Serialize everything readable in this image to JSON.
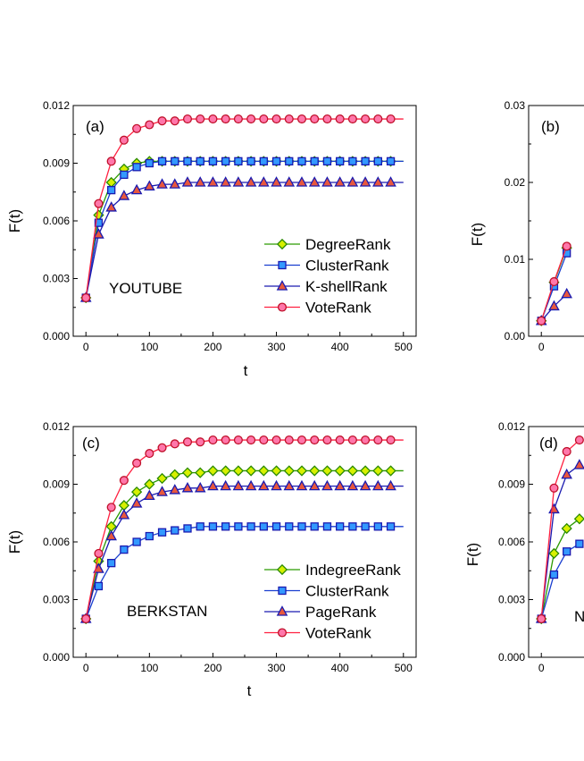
{
  "chart_data": [
    {
      "id": "a",
      "type": "line",
      "panel_label": "(a)",
      "dataset_label": "YOUTUBE",
      "xlabel": "t",
      "ylabel": "F(t)",
      "xlim": [
        -20,
        520
      ],
      "ylim": [
        0,
        0.012
      ],
      "xticks": [
        "0",
        "100",
        "200",
        "300",
        "400",
        "500"
      ],
      "yticks": [
        "0.000",
        "0.003",
        "0.006",
        "0.009",
        "0.012"
      ],
      "legend_position": "right",
      "x": [
        0,
        20,
        40,
        60,
        80,
        100,
        120,
        140,
        160,
        180,
        200,
        220,
        240,
        260,
        280,
        300,
        320,
        340,
        360,
        380,
        400,
        420,
        440,
        460,
        480
      ],
      "series": [
        {
          "name": "DegreeRank",
          "color": "#7acc00",
          "marker": "diamond",
          "values": [
            0.002,
            0.0063,
            0.008,
            0.0087,
            0.009,
            0.0091,
            0.0091,
            0.0091,
            0.0091,
            0.0091,
            0.0091,
            0.0091,
            0.0091,
            0.0091,
            0.0091,
            0.0091,
            0.0091,
            0.0091,
            0.0091,
            0.0091,
            0.0091,
            0.0091,
            0.0091,
            0.0091,
            0.0091
          ]
        },
        {
          "name": "ClusterRank",
          "color": "#3399ff",
          "marker": "square",
          "values": [
            0.002,
            0.0059,
            0.0076,
            0.0084,
            0.0088,
            0.009,
            0.0091,
            0.0091,
            0.0091,
            0.0091,
            0.0091,
            0.0091,
            0.0091,
            0.0091,
            0.0091,
            0.0091,
            0.0091,
            0.0091,
            0.0091,
            0.0091,
            0.0091,
            0.0091,
            0.0091,
            0.0091,
            0.0091
          ]
        },
        {
          "name": "K-shellRank",
          "color": "#e8583d",
          "marker": "triangle",
          "values": [
            0.002,
            0.0053,
            0.0067,
            0.0073,
            0.0076,
            0.0078,
            0.0079,
            0.0079,
            0.008,
            0.008,
            0.008,
            0.008,
            0.008,
            0.008,
            0.008,
            0.008,
            0.008,
            0.008,
            0.008,
            0.008,
            0.008,
            0.008,
            0.008,
            0.008,
            0.008
          ]
        },
        {
          "name": "VoteRank",
          "color": "#ff77aa",
          "marker": "circle",
          "values": [
            0.002,
            0.0069,
            0.0091,
            0.0102,
            0.0108,
            0.011,
            0.0112,
            0.0112,
            0.0113,
            0.0113,
            0.0113,
            0.0113,
            0.0113,
            0.0113,
            0.0113,
            0.0113,
            0.0113,
            0.0113,
            0.0113,
            0.0113,
            0.0113,
            0.0113,
            0.0113,
            0.0113,
            0.0113
          ]
        }
      ]
    },
    {
      "id": "b",
      "type": "line",
      "panel_label": "(b)",
      "ylabel": "F(t)",
      "xlim": [
        -20,
        520
      ],
      "ylim": [
        0,
        0.03
      ],
      "xticks": [
        "0"
      ],
      "yticks": [
        "0.00",
        "0.01",
        "0.02",
        "0.03"
      ],
      "x": [
        0,
        20,
        40
      ],
      "series": [
        {
          "color": "#7acc00",
          "marker": "diamond",
          "values": [
            0.002,
            0.007,
            0.0115
          ]
        },
        {
          "color": "#3399ff",
          "marker": "square",
          "values": [
            0.002,
            0.0065,
            0.0108
          ]
        },
        {
          "color": "#e8583d",
          "marker": "triangle",
          "values": [
            0.002,
            0.0039,
            0.0055
          ]
        },
        {
          "color": "#ff77aa",
          "marker": "circle",
          "values": [
            0.002,
            0.0071,
            0.0117
          ]
        }
      ]
    },
    {
      "id": "c",
      "type": "line",
      "panel_label": "(c)",
      "dataset_label": "BERKSTAN",
      "xlabel": "t",
      "ylabel": "F(t)",
      "xlim": [
        -20,
        520
      ],
      "ylim": [
        0,
        0.012
      ],
      "xticks": [
        "0",
        "100",
        "200",
        "300",
        "400",
        "500"
      ],
      "yticks": [
        "0.000",
        "0.003",
        "0.006",
        "0.009",
        "0.012"
      ],
      "legend_position": "right",
      "x": [
        0,
        20,
        40,
        60,
        80,
        100,
        120,
        140,
        160,
        180,
        200,
        220,
        240,
        260,
        280,
        300,
        320,
        340,
        360,
        380,
        400,
        420,
        440,
        460,
        480
      ],
      "series": [
        {
          "name": "IndegreeRank",
          "color": "#7acc00",
          "marker": "diamond",
          "values": [
            0.002,
            0.005,
            0.0068,
            0.0079,
            0.0086,
            0.009,
            0.0093,
            0.0095,
            0.0096,
            0.0096,
            0.0097,
            0.0097,
            0.0097,
            0.0097,
            0.0097,
            0.0097,
            0.0097,
            0.0097,
            0.0097,
            0.0097,
            0.0097,
            0.0097,
            0.0097,
            0.0097,
            0.0097
          ]
        },
        {
          "name": "ClusterRank",
          "color": "#3399ff",
          "marker": "square",
          "values": [
            0.002,
            0.0037,
            0.0049,
            0.0056,
            0.006,
            0.0063,
            0.0065,
            0.0066,
            0.0067,
            0.0068,
            0.0068,
            0.0068,
            0.0068,
            0.0068,
            0.0068,
            0.0068,
            0.0068,
            0.0068,
            0.0068,
            0.0068,
            0.0068,
            0.0068,
            0.0068,
            0.0068,
            0.0068
          ]
        },
        {
          "name": "PageRank",
          "color": "#e8583d",
          "marker": "triangle",
          "values": [
            0.002,
            0.0046,
            0.0063,
            0.0074,
            0.008,
            0.0084,
            0.0086,
            0.0087,
            0.0088,
            0.0088,
            0.0089,
            0.0089,
            0.0089,
            0.0089,
            0.0089,
            0.0089,
            0.0089,
            0.0089,
            0.0089,
            0.0089,
            0.0089,
            0.0089,
            0.0089,
            0.0089,
            0.0089
          ]
        },
        {
          "name": "VoteRank",
          "color": "#ff77aa",
          "marker": "circle",
          "values": [
            0.002,
            0.0054,
            0.0078,
            0.0092,
            0.0101,
            0.0106,
            0.0109,
            0.0111,
            0.0112,
            0.0112,
            0.0113,
            0.0113,
            0.0113,
            0.0113,
            0.0113,
            0.0113,
            0.0113,
            0.0113,
            0.0113,
            0.0113,
            0.0113,
            0.0113,
            0.0113,
            0.0113,
            0.0113
          ]
        }
      ]
    },
    {
      "id": "d",
      "type": "line",
      "panel_label": "(d)",
      "dataset_label": "N",
      "ylabel": "F(t)",
      "xlim": [
        -20,
        520
      ],
      "ylim": [
        0,
        0.012
      ],
      "xticks": [
        "0"
      ],
      "yticks": [
        "0.000",
        "0.003",
        "0.006",
        "0.009",
        "0.012"
      ],
      "x": [
        0,
        20,
        40,
        60
      ],
      "series": [
        {
          "color": "#7acc00",
          "marker": "diamond",
          "values": [
            0.002,
            0.0054,
            0.0067,
            0.0072
          ]
        },
        {
          "color": "#3399ff",
          "marker": "square",
          "values": [
            0.002,
            0.0043,
            0.0055,
            0.0059
          ]
        },
        {
          "color": "#e8583d",
          "marker": "triangle",
          "values": [
            0.002,
            0.0077,
            0.0095,
            0.01
          ]
        },
        {
          "color": "#ff77aa",
          "marker": "circle",
          "values": [
            0.002,
            0.0088,
            0.0107,
            0.0113
          ]
        }
      ]
    }
  ]
}
